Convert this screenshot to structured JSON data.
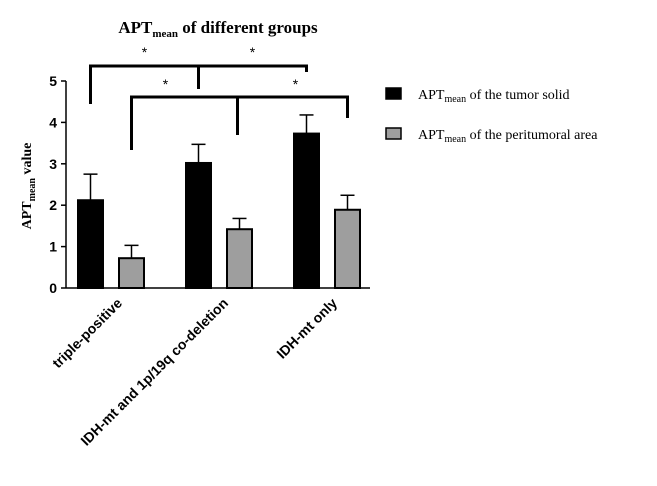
{
  "chart_data": {
    "type": "bar",
    "title": {
      "main": "APT",
      "sub": "mean",
      "rest": " of different groups"
    },
    "ylabel": {
      "main": "APT",
      "sub": "mean",
      "rest": " value"
    },
    "xlabel": "",
    "ylim": [
      0,
      5
    ],
    "yticks": [
      "0",
      "1",
      "2",
      "3",
      "4",
      "5"
    ],
    "categories": [
      "triple-positive",
      "IDH-mt and 1p/19q co-deletion",
      "IDH-mt only"
    ],
    "series": [
      {
        "name": "APTmean of the tumor solid",
        "legend": {
          "main": "APT",
          "sub": "mean",
          "rest": " of the tumor solid"
        },
        "color": "#000000",
        "values": [
          2.12,
          3.02,
          3.73
        ],
        "errors": [
          0.63,
          0.45,
          0.45
        ]
      },
      {
        "name": "APTmean of the peritumoral area",
        "legend": {
          "main": "APT",
          "sub": "mean",
          "rest": " of the peritumoral area"
        },
        "color": "#9e9e9e",
        "values": [
          0.72,
          1.42,
          1.89
        ],
        "errors": [
          0.31,
          0.26,
          0.35
        ]
      }
    ],
    "significance": [
      {
        "from": "triple-positive",
        "to": "IDH-mt and 1p/19q co-deletion",
        "label": "*"
      },
      {
        "from": "IDH-mt and 1p/19q co-deletion",
        "to": "IDH-mt only",
        "label": "*"
      },
      {
        "from": "triple-positive",
        "to": "IDH-mt and 1p/19q co-deletion",
        "label": "*"
      },
      {
        "from": "IDH-mt and 1p/19q co-deletion",
        "to": "IDH-mt only",
        "label": "*"
      }
    ]
  }
}
